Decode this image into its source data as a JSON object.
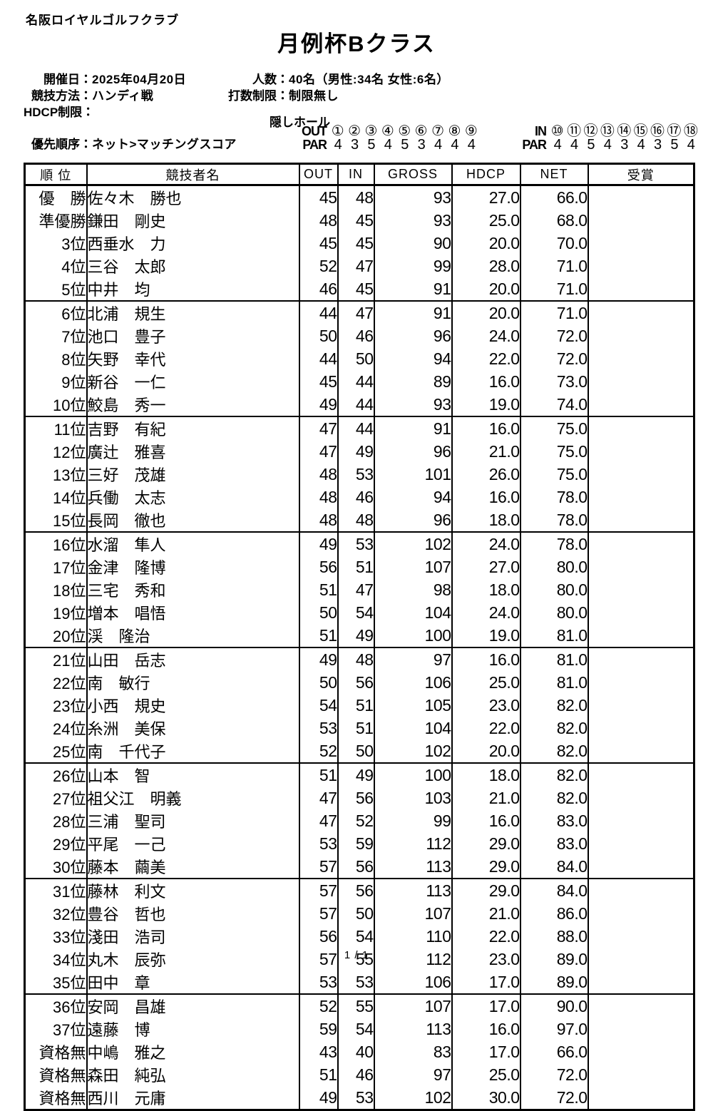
{
  "club_name": "名阪ロイヤルゴルフクラブ",
  "title": "月例杯Bクラス",
  "info": {
    "date_label": "開催日：",
    "date_value": "2025年04月20日",
    "players_label": "人数：",
    "players_value": "40名（男性:34名 女性:6名）",
    "method_label": "競技方法：",
    "method_value": "ハンディ戦",
    "stroke_limit_label": "打数制限：",
    "stroke_limit_value": "制限無し",
    "hdcp_limit_label": "HDCP制限：",
    "hdcp_limit_value": "",
    "priority_label": "優先順序：",
    "priority_value": "ネット>マッチングスコア"
  },
  "hidden_holes": {
    "section_label": "隠しホール",
    "out_label": "OUT",
    "out_holes": [
      "①",
      "②",
      "③",
      "④",
      "⑤",
      "⑥",
      "⑦",
      "⑧",
      "⑨"
    ],
    "out_par_label": "PAR",
    "out_pars": [
      "4",
      "3",
      "5",
      "4",
      "5",
      "3",
      "4",
      "4",
      "4"
    ],
    "in_label": "IN",
    "in_holes": [
      "⑩",
      "⑪",
      "⑫",
      "⑬",
      "⑭",
      "⑮",
      "⑯",
      "⑰",
      "⑱"
    ],
    "in_par_label": "PAR",
    "in_pars": [
      "4",
      "4",
      "5",
      "4",
      "3",
      "4",
      "3",
      "5",
      "4"
    ]
  },
  "table": {
    "headers": [
      "順 位",
      "競技者名",
      "OUT",
      "IN",
      "GROSS",
      "HDCP",
      "NET",
      "受賞"
    ],
    "rows": [
      {
        "rank": "優　勝",
        "name": "佐々木　勝也",
        "out": 45,
        "in": 48,
        "gross": 93,
        "hdcp": "27.0",
        "net": "66.0",
        "award": ""
      },
      {
        "rank": "準優勝",
        "name": "鎌田　剛史",
        "out": 48,
        "in": 45,
        "gross": 93,
        "hdcp": "25.0",
        "net": "68.0",
        "award": ""
      },
      {
        "rank": "3位",
        "name": "西垂水　力",
        "out": 45,
        "in": 45,
        "gross": 90,
        "hdcp": "20.0",
        "net": "70.0",
        "award": ""
      },
      {
        "rank": "4位",
        "name": "三谷　太郎",
        "out": 52,
        "in": 47,
        "gross": 99,
        "hdcp": "28.0",
        "net": "71.0",
        "award": ""
      },
      {
        "rank": "5位",
        "name": "中井　均",
        "out": 46,
        "in": 45,
        "gross": 91,
        "hdcp": "20.0",
        "net": "71.0",
        "award": ""
      },
      {
        "rank": "6位",
        "name": "北浦　規生",
        "out": 44,
        "in": 47,
        "gross": 91,
        "hdcp": "20.0",
        "net": "71.0",
        "award": ""
      },
      {
        "rank": "7位",
        "name": "池口　豊子",
        "out": 50,
        "in": 46,
        "gross": 96,
        "hdcp": "24.0",
        "net": "72.0",
        "award": ""
      },
      {
        "rank": "8位",
        "name": "矢野　幸代",
        "out": 44,
        "in": 50,
        "gross": 94,
        "hdcp": "22.0",
        "net": "72.0",
        "award": ""
      },
      {
        "rank": "9位",
        "name": "新谷　一仁",
        "out": 45,
        "in": 44,
        "gross": 89,
        "hdcp": "16.0",
        "net": "73.0",
        "award": ""
      },
      {
        "rank": "10位",
        "name": "鮫島　秀一",
        "out": 49,
        "in": 44,
        "gross": 93,
        "hdcp": "19.0",
        "net": "74.0",
        "award": ""
      },
      {
        "rank": "11位",
        "name": "吉野　有紀",
        "out": 47,
        "in": 44,
        "gross": 91,
        "hdcp": "16.0",
        "net": "75.0",
        "award": ""
      },
      {
        "rank": "12位",
        "name": "廣辻　雅喜",
        "out": 47,
        "in": 49,
        "gross": 96,
        "hdcp": "21.0",
        "net": "75.0",
        "award": ""
      },
      {
        "rank": "13位",
        "name": "三好　茂雄",
        "out": 48,
        "in": 53,
        "gross": 101,
        "hdcp": "26.0",
        "net": "75.0",
        "award": ""
      },
      {
        "rank": "14位",
        "name": "兵働　太志",
        "out": 48,
        "in": 46,
        "gross": 94,
        "hdcp": "16.0",
        "net": "78.0",
        "award": ""
      },
      {
        "rank": "15位",
        "name": "長岡　徹也",
        "out": 48,
        "in": 48,
        "gross": 96,
        "hdcp": "18.0",
        "net": "78.0",
        "award": ""
      },
      {
        "rank": "16位",
        "name": "水溜　隼人",
        "out": 49,
        "in": 53,
        "gross": 102,
        "hdcp": "24.0",
        "net": "78.0",
        "award": ""
      },
      {
        "rank": "17位",
        "name": "金津　隆博",
        "out": 56,
        "in": 51,
        "gross": 107,
        "hdcp": "27.0",
        "net": "80.0",
        "award": ""
      },
      {
        "rank": "18位",
        "name": "三宅　秀和",
        "out": 51,
        "in": 47,
        "gross": 98,
        "hdcp": "18.0",
        "net": "80.0",
        "award": ""
      },
      {
        "rank": "19位",
        "name": "増本　唱悟",
        "out": 50,
        "in": 54,
        "gross": 104,
        "hdcp": "24.0",
        "net": "80.0",
        "award": ""
      },
      {
        "rank": "20位",
        "name": "渓　隆治",
        "out": 51,
        "in": 49,
        "gross": 100,
        "hdcp": "19.0",
        "net": "81.0",
        "award": ""
      },
      {
        "rank": "21位",
        "name": "山田　岳志",
        "out": 49,
        "in": 48,
        "gross": 97,
        "hdcp": "16.0",
        "net": "81.0",
        "award": ""
      },
      {
        "rank": "22位",
        "name": "南　敏行",
        "out": 50,
        "in": 56,
        "gross": 106,
        "hdcp": "25.0",
        "net": "81.0",
        "award": ""
      },
      {
        "rank": "23位",
        "name": "小西　規史",
        "out": 54,
        "in": 51,
        "gross": 105,
        "hdcp": "23.0",
        "net": "82.0",
        "award": ""
      },
      {
        "rank": "24位",
        "name": "糸洲　美保",
        "out": 53,
        "in": 51,
        "gross": 104,
        "hdcp": "22.0",
        "net": "82.0",
        "award": ""
      },
      {
        "rank": "25位",
        "name": "南　千代子",
        "out": 52,
        "in": 50,
        "gross": 102,
        "hdcp": "20.0",
        "net": "82.0",
        "award": ""
      },
      {
        "rank": "26位",
        "name": "山本　智",
        "out": 51,
        "in": 49,
        "gross": 100,
        "hdcp": "18.0",
        "net": "82.0",
        "award": ""
      },
      {
        "rank": "27位",
        "name": "祖父江　明義",
        "out": 47,
        "in": 56,
        "gross": 103,
        "hdcp": "21.0",
        "net": "82.0",
        "award": ""
      },
      {
        "rank": "28位",
        "name": "三浦　聖司",
        "out": 47,
        "in": 52,
        "gross": 99,
        "hdcp": "16.0",
        "net": "83.0",
        "award": ""
      },
      {
        "rank": "29位",
        "name": "平尾　一己",
        "out": 53,
        "in": 59,
        "gross": 112,
        "hdcp": "29.0",
        "net": "83.0",
        "award": ""
      },
      {
        "rank": "30位",
        "name": "藤本　繭美",
        "out": 57,
        "in": 56,
        "gross": 113,
        "hdcp": "29.0",
        "net": "84.0",
        "award": ""
      },
      {
        "rank": "31位",
        "name": "藤林　利文",
        "out": 57,
        "in": 56,
        "gross": 113,
        "hdcp": "29.0",
        "net": "84.0",
        "award": ""
      },
      {
        "rank": "32位",
        "name": "豊谷　哲也",
        "out": 57,
        "in": 50,
        "gross": 107,
        "hdcp": "21.0",
        "net": "86.0",
        "award": ""
      },
      {
        "rank": "33位",
        "name": "淺田　浩司",
        "out": 56,
        "in": 54,
        "gross": 110,
        "hdcp": "22.0",
        "net": "88.0",
        "award": ""
      },
      {
        "rank": "34位",
        "name": "丸木　辰弥",
        "out": 57,
        "in": 55,
        "gross": 112,
        "hdcp": "23.0",
        "net": "89.0",
        "award": ""
      },
      {
        "rank": "35位",
        "name": "田中　章",
        "out": 53,
        "in": 53,
        "gross": 106,
        "hdcp": "17.0",
        "net": "89.0",
        "award": ""
      },
      {
        "rank": "36位",
        "name": "安岡　昌雄",
        "out": 52,
        "in": 55,
        "gross": 107,
        "hdcp": "17.0",
        "net": "90.0",
        "award": ""
      },
      {
        "rank": "37位",
        "name": "遠藤　博",
        "out": 59,
        "in": 54,
        "gross": 113,
        "hdcp": "16.0",
        "net": "97.0",
        "award": ""
      },
      {
        "rank": "資格無",
        "name": "中嶋　雅之",
        "out": 43,
        "in": 40,
        "gross": 83,
        "hdcp": "17.0",
        "net": "66.0",
        "award": ""
      },
      {
        "rank": "資格無",
        "name": "森田　純弘",
        "out": 51,
        "in": 46,
        "gross": 97,
        "hdcp": "25.0",
        "net": "72.0",
        "award": ""
      },
      {
        "rank": "資格無",
        "name": "西川　元庸",
        "out": 49,
        "in": 53,
        "gross": 102,
        "hdcp": "30.0",
        "net": "72.0",
        "award": ""
      }
    ]
  },
  "footer": {
    "page": "1 / 1"
  }
}
